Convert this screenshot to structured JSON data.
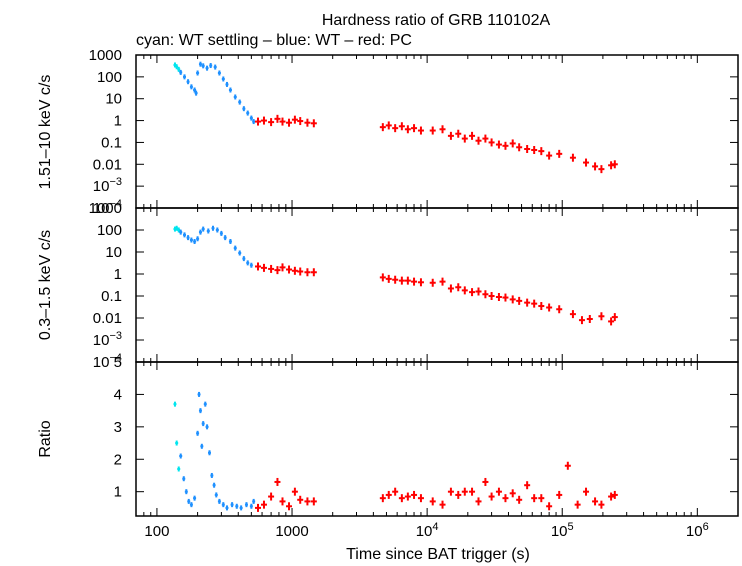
{
  "chart_data": {
    "type": "scatter",
    "title": "Hardness ratio of GRB 110102A",
    "subtitle": "cyan: WT settling – blue: WT – red: PC",
    "xlabel": "Time since BAT trigger (s)",
    "x_scale": "log",
    "xlim": [
      70,
      2000000
    ],
    "x_ticks": [
      {
        "value": 100,
        "label": "100"
      },
      {
        "value": 1000,
        "label": "1000"
      },
      {
        "value": 10000,
        "label": "10",
        "exp": "4"
      },
      {
        "value": 100000,
        "label": "10",
        "exp": "5"
      },
      {
        "value": 1000000,
        "label": "10",
        "exp": "6"
      }
    ],
    "colors": {
      "wt_settling": "#00e5ee",
      "wt": "#1e90ff",
      "pc": "#ff0000"
    },
    "panels": [
      {
        "id": "hard",
        "ylabel": "1.51–10 keV c/s",
        "y_scale": "log",
        "ylim": [
          0.0001,
          1000
        ],
        "y_ticks": [
          {
            "value": 1000,
            "label": "1000"
          },
          {
            "value": 100,
            "label": "100"
          },
          {
            "value": 10,
            "label": "10"
          },
          {
            "value": 1,
            "label": "1"
          },
          {
            "value": 0.1,
            "label": "0.1"
          },
          {
            "value": 0.01,
            "label": "0.01"
          },
          {
            "value": 0.001,
            "label": "10",
            "exp": "−3"
          },
          {
            "value": 0.0001,
            "label": "10",
            "exp": "−4"
          }
        ],
        "series": [
          {
            "name": "WT settling",
            "color": "#00e5ee",
            "points": [
              [
                136,
                350
              ],
              [
                140,
                290
              ],
              [
                145,
                220
              ]
            ]
          },
          {
            "name": "WT",
            "color": "#1e90ff",
            "points": [
              [
                150,
                160
              ],
              [
                160,
                100
              ],
              [
                170,
                60
              ],
              [
                180,
                35
              ],
              [
                190,
                25
              ],
              [
                195,
                18
              ],
              [
                200,
                150
              ],
              [
                210,
                380
              ],
              [
                220,
                320
              ],
              [
                235,
                250
              ],
              [
                250,
                330
              ],
              [
                270,
                280
              ],
              [
                290,
                150
              ],
              [
                310,
                80
              ],
              [
                330,
                45
              ],
              [
                350,
                25
              ],
              [
                380,
                12
              ],
              [
                410,
                7
              ],
              [
                440,
                3.5
              ],
              [
                470,
                2.2
              ],
              [
                500,
                1.3
              ],
              [
                520,
                0.9
              ]
            ]
          },
          {
            "name": "PC",
            "color": "#ff0000",
            "points": [
              [
                560,
                0.9
              ],
              [
                620,
                1.0
              ],
              [
                700,
                0.85
              ],
              [
                780,
                1.2
              ],
              [
                850,
                0.9
              ],
              [
                950,
                0.8
              ],
              [
                1050,
                1.1
              ],
              [
                1150,
                0.95
              ],
              [
                1300,
                0.8
              ],
              [
                1450,
                0.75
              ],
              [
                4700,
                0.5
              ],
              [
                5200,
                0.6
              ],
              [
                5800,
                0.45
              ],
              [
                6500,
                0.55
              ],
              [
                7200,
                0.4
              ],
              [
                8000,
                0.45
              ],
              [
                9000,
                0.35
              ],
              [
                11000,
                0.35
              ],
              [
                13000,
                0.4
              ],
              [
                15000,
                0.2
              ],
              [
                17000,
                0.25
              ],
              [
                19000,
                0.15
              ],
              [
                21500,
                0.2
              ],
              [
                24000,
                0.12
              ],
              [
                27000,
                0.15
              ],
              [
                30000,
                0.1
              ],
              [
                34000,
                0.08
              ],
              [
                38000,
                0.07
              ],
              [
                43000,
                0.09
              ],
              [
                48000,
                0.06
              ],
              [
                55000,
                0.05
              ],
              [
                62000,
                0.045
              ],
              [
                70000,
                0.04
              ],
              [
                80000,
                0.025
              ],
              [
                95000,
                0.03
              ],
              [
                120000,
                0.02
              ],
              [
                150000,
                0.012
              ],
              [
                175000,
                0.008
              ],
              [
                195000,
                0.006
              ],
              [
                230000,
                0.009
              ],
              [
                245000,
                0.01
              ]
            ]
          }
        ]
      },
      {
        "id": "soft",
        "ylabel": "0.3–1.5 keV c/s",
        "y_scale": "log",
        "ylim": [
          0.0001,
          1000
        ],
        "y_ticks": [
          {
            "value": 1000,
            "label": "1000"
          },
          {
            "value": 100,
            "label": "100"
          },
          {
            "value": 10,
            "label": "10"
          },
          {
            "value": 1,
            "label": "1"
          },
          {
            "value": 0.1,
            "label": "0.1"
          },
          {
            "value": 0.01,
            "label": "0.01"
          },
          {
            "value": 0.001,
            "label": "10",
            "exp": "−3"
          },
          {
            "value": 0.0001,
            "label": "10",
            "exp": "−4"
          }
        ],
        "series": [
          {
            "name": "WT settling",
            "color": "#00e5ee",
            "points": [
              [
                136,
                110
              ],
              [
                140,
                120
              ],
              [
                145,
                100
              ]
            ]
          },
          {
            "name": "WT",
            "color": "#1e90ff",
            "points": [
              [
                150,
                80
              ],
              [
                160,
                60
              ],
              [
                170,
                45
              ],
              [
                180,
                35
              ],
              [
                190,
                30
              ],
              [
                200,
                40
              ],
              [
                210,
                80
              ],
              [
                220,
                110
              ],
              [
                240,
                90
              ],
              [
                260,
                120
              ],
              [
                280,
                100
              ],
              [
                300,
                70
              ],
              [
                320,
                45
              ],
              [
                350,
                30
              ],
              [
                380,
                15
              ],
              [
                410,
                9
              ],
              [
                440,
                5
              ],
              [
                470,
                3.2
              ],
              [
                500,
                2.5
              ]
            ]
          },
          {
            "name": "PC",
            "color": "#ff0000",
            "points": [
              [
                560,
                2.2
              ],
              [
                620,
                1.9
              ],
              [
                700,
                1.7
              ],
              [
                780,
                1.5
              ],
              [
                850,
                2.0
              ],
              [
                950,
                1.6
              ],
              [
                1050,
                1.4
              ],
              [
                1150,
                1.3
              ],
              [
                1300,
                1.2
              ],
              [
                1450,
                1.2
              ],
              [
                4700,
                0.7
              ],
              [
                5200,
                0.6
              ],
              [
                5800,
                0.55
              ],
              [
                6500,
                0.5
              ],
              [
                7200,
                0.5
              ],
              [
                8000,
                0.45
              ],
              [
                9000,
                0.42
              ],
              [
                11000,
                0.4
              ],
              [
                13000,
                0.45
              ],
              [
                15000,
                0.22
              ],
              [
                17000,
                0.25
              ],
              [
                19000,
                0.18
              ],
              [
                21500,
                0.15
              ],
              [
                24000,
                0.16
              ],
              [
                27000,
                0.12
              ],
              [
                30000,
                0.1
              ],
              [
                34000,
                0.09
              ],
              [
                38000,
                0.085
              ],
              [
                43000,
                0.07
              ],
              [
                48000,
                0.06
              ],
              [
                55000,
                0.05
              ],
              [
                62000,
                0.045
              ],
              [
                70000,
                0.035
              ],
              [
                80000,
                0.03
              ],
              [
                95000,
                0.025
              ],
              [
                120000,
                0.015
              ],
              [
                140000,
                0.008
              ],
              [
                160000,
                0.009
              ],
              [
                195000,
                0.012
              ],
              [
                230000,
                0.007
              ],
              [
                245000,
                0.011
              ]
            ]
          }
        ]
      },
      {
        "id": "ratio",
        "ylabel": "Ratio",
        "y_scale": "linear",
        "ylim": [
          0.25,
          5
        ],
        "y_ticks": [
          {
            "value": 1,
            "label": "1"
          },
          {
            "value": 2,
            "label": "2"
          },
          {
            "value": 3,
            "label": "3"
          },
          {
            "value": 4,
            "label": "4"
          },
          {
            "value": 5,
            "label": "5"
          }
        ],
        "series": [
          {
            "name": "WT settling",
            "color": "#00e5ee",
            "points": [
              [
                136,
                3.7
              ],
              [
                140,
                2.5
              ],
              [
                145,
                1.7
              ]
            ]
          },
          {
            "name": "WT",
            "color": "#1e90ff",
            "points": [
              [
                150,
                2.1
              ],
              [
                158,
                1.4
              ],
              [
                165,
                1.0
              ],
              [
                172,
                0.7
              ],
              [
                180,
                0.6
              ],
              [
                190,
                0.8
              ],
              [
                200,
                2.8
              ],
              [
                205,
                4.0
              ],
              [
                210,
                3.5
              ],
              [
                215,
                2.4
              ],
              [
                220,
                3.1
              ],
              [
                228,
                3.7
              ],
              [
                235,
                3.0
              ],
              [
                245,
                2.2
              ],
              [
                255,
                1.5
              ],
              [
                265,
                1.2
              ],
              [
                275,
                0.9
              ],
              [
                290,
                0.7
              ],
              [
                310,
                0.6
              ],
              [
                330,
                0.5
              ],
              [
                360,
                0.6
              ],
              [
                390,
                0.55
              ],
              [
                420,
                0.5
              ],
              [
                460,
                0.6
              ],
              [
                500,
                0.55
              ],
              [
                520,
                0.7
              ]
            ]
          },
          {
            "name": "PC",
            "color": "#ff0000",
            "points": [
              [
                560,
                0.5
              ],
              [
                620,
                0.6
              ],
              [
                700,
                0.85
              ],
              [
                780,
                1.3
              ],
              [
                850,
                0.7
              ],
              [
                950,
                0.55
              ],
              [
                1050,
                1.0
              ],
              [
                1150,
                0.75
              ],
              [
                1300,
                0.7
              ],
              [
                1450,
                0.7
              ],
              [
                4700,
                0.8
              ],
              [
                5200,
                0.9
              ],
              [
                5800,
                1.0
              ],
              [
                6500,
                0.8
              ],
              [
                7200,
                0.85
              ],
              [
                8000,
                0.9
              ],
              [
                9000,
                0.8
              ],
              [
                11000,
                0.7
              ],
              [
                13000,
                0.6
              ],
              [
                15000,
                1.0
              ],
              [
                17000,
                0.9
              ],
              [
                19000,
                1.0
              ],
              [
                21500,
                1.0
              ],
              [
                24000,
                0.7
              ],
              [
                27000,
                1.3
              ],
              [
                30000,
                0.85
              ],
              [
                34000,
                1.0
              ],
              [
                38000,
                0.8
              ],
              [
                43000,
                0.95
              ],
              [
                48000,
                0.75
              ],
              [
                55000,
                1.2
              ],
              [
                62000,
                0.8
              ],
              [
                70000,
                0.8
              ],
              [
                80000,
                0.55
              ],
              [
                95000,
                0.9
              ],
              [
                110000,
                1.8
              ],
              [
                130000,
                0.6
              ],
              [
                150000,
                1.0
              ],
              [
                175000,
                0.7
              ],
              [
                195000,
                0.6
              ],
              [
                230000,
                0.85
              ],
              [
                245000,
                0.9
              ]
            ]
          }
        ]
      }
    ]
  }
}
